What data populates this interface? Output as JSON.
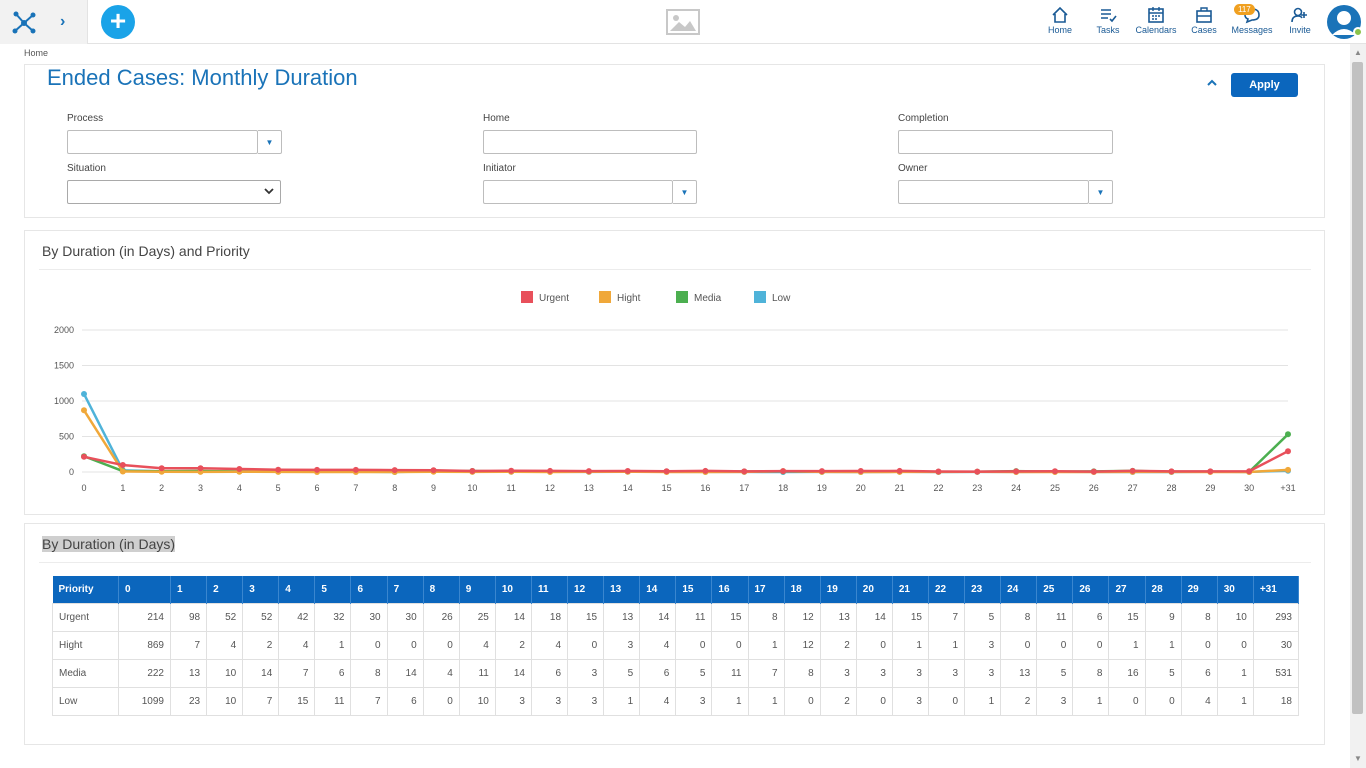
{
  "header": {
    "nav": [
      {
        "label": "Home",
        "icon": "home-icon"
      },
      {
        "label": "Tasks",
        "icon": "tasks-icon"
      },
      {
        "label": "Calendars",
        "icon": "calendar-icon"
      },
      {
        "label": "Cases",
        "icon": "briefcase-icon"
      },
      {
        "label": "Messages",
        "icon": "message-icon",
        "badge": "117"
      },
      {
        "label": "Invite",
        "icon": "invite-icon"
      }
    ],
    "accent": "#1a73b8"
  },
  "breadcrumb": "Home",
  "filters": {
    "title": "Ended Cases: Monthly Duration",
    "apply_label": "Apply",
    "process_label": "Process",
    "home_label": "Home",
    "completion_label": "Completion",
    "situation_label": "Situation",
    "initiator_label": "Initiator",
    "owner_label": "Owner"
  },
  "chart_section": {
    "title": "By Duration (in Days) and Priority"
  },
  "chart_data": {
    "type": "line",
    "categories": [
      "0",
      "1",
      "2",
      "3",
      "4",
      "5",
      "6",
      "7",
      "8",
      "9",
      "10",
      "11",
      "12",
      "13",
      "14",
      "15",
      "16",
      "17",
      "18",
      "19",
      "20",
      "21",
      "22",
      "23",
      "24",
      "25",
      "26",
      "27",
      "28",
      "29",
      "30",
      "+31"
    ],
    "series": [
      {
        "name": "Urgent",
        "color": "#e8505b",
        "values": [
          214,
          98,
          52,
          52,
          42,
          32,
          30,
          30,
          26,
          25,
          14,
          18,
          15,
          13,
          14,
          11,
          15,
          8,
          12,
          13,
          14,
          15,
          7,
          5,
          8,
          11,
          6,
          15,
          9,
          8,
          10,
          293
        ]
      },
      {
        "name": "Hight",
        "color": "#f0a83a",
        "values": [
          869,
          7,
          4,
          2,
          4,
          1,
          0,
          0,
          0,
          4,
          2,
          4,
          0,
          3,
          4,
          0,
          0,
          1,
          12,
          2,
          0,
          1,
          1,
          3,
          0,
          0,
          0,
          1,
          1,
          0,
          0,
          30
        ]
      },
      {
        "name": "Media",
        "color": "#4caf50",
        "values": [
          222,
          13,
          10,
          14,
          7,
          6,
          8,
          14,
          4,
          11,
          14,
          6,
          3,
          5,
          6,
          5,
          11,
          7,
          8,
          3,
          3,
          3,
          3,
          3,
          13,
          5,
          8,
          16,
          5,
          6,
          1,
          531
        ]
      },
      {
        "name": "Low",
        "color": "#4fb3d9",
        "values": [
          1099,
          23,
          10,
          7,
          15,
          11,
          7,
          6,
          0,
          10,
          3,
          3,
          3,
          1,
          4,
          3,
          1,
          1,
          0,
          2,
          0,
          3,
          0,
          1,
          2,
          3,
          1,
          0,
          0,
          4,
          1,
          18
        ]
      }
    ],
    "yticks": [
      "0",
      "500",
      "1000",
      "1500",
      "2000"
    ],
    "ylim": [
      0,
      2000
    ],
    "grid": true,
    "legend": "top-center"
  },
  "table_section": {
    "title": "By Duration (in Days)",
    "header_first": "Priority",
    "columns": [
      "0",
      "1",
      "2",
      "3",
      "4",
      "5",
      "6",
      "7",
      "8",
      "9",
      "10",
      "11",
      "12",
      "13",
      "14",
      "15",
      "16",
      "17",
      "18",
      "19",
      "20",
      "21",
      "22",
      "23",
      "24",
      "25",
      "26",
      "27",
      "28",
      "29",
      "30",
      "+31"
    ],
    "rows": [
      {
        "label": "Urgent",
        "values": [
          "214",
          "98",
          "52",
          "52",
          "42",
          "32",
          "30",
          "30",
          "26",
          "25",
          "14",
          "18",
          "15",
          "13",
          "14",
          "11",
          "15",
          "8",
          "12",
          "13",
          "14",
          "15",
          "7",
          "5",
          "8",
          "11",
          "6",
          "15",
          "9",
          "8",
          "10",
          "293"
        ]
      },
      {
        "label": "Hight",
        "values": [
          "869",
          "7",
          "4",
          "2",
          "4",
          "1",
          "0",
          "0",
          "0",
          "4",
          "2",
          "4",
          "0",
          "3",
          "4",
          "0",
          "0",
          "1",
          "12",
          "2",
          "0",
          "1",
          "1",
          "3",
          "0",
          "0",
          "0",
          "1",
          "1",
          "0",
          "0",
          "30"
        ]
      },
      {
        "label": "Media",
        "values": [
          "222",
          "13",
          "10",
          "14",
          "7",
          "6",
          "8",
          "14",
          "4",
          "11",
          "14",
          "6",
          "3",
          "5",
          "6",
          "5",
          "11",
          "7",
          "8",
          "3",
          "3",
          "3",
          "3",
          "3",
          "13",
          "5",
          "8",
          "16",
          "5",
          "6",
          "1",
          "531"
        ]
      },
      {
        "label": "Low",
        "values": [
          "1099",
          "23",
          "10",
          "7",
          "15",
          "11",
          "7",
          "6",
          "0",
          "10",
          "3",
          "3",
          "3",
          "1",
          "4",
          "3",
          "1",
          "1",
          "0",
          "2",
          "0",
          "3",
          "0",
          "1",
          "2",
          "3",
          "1",
          "0",
          "0",
          "4",
          "1",
          "18"
        ]
      }
    ]
  }
}
